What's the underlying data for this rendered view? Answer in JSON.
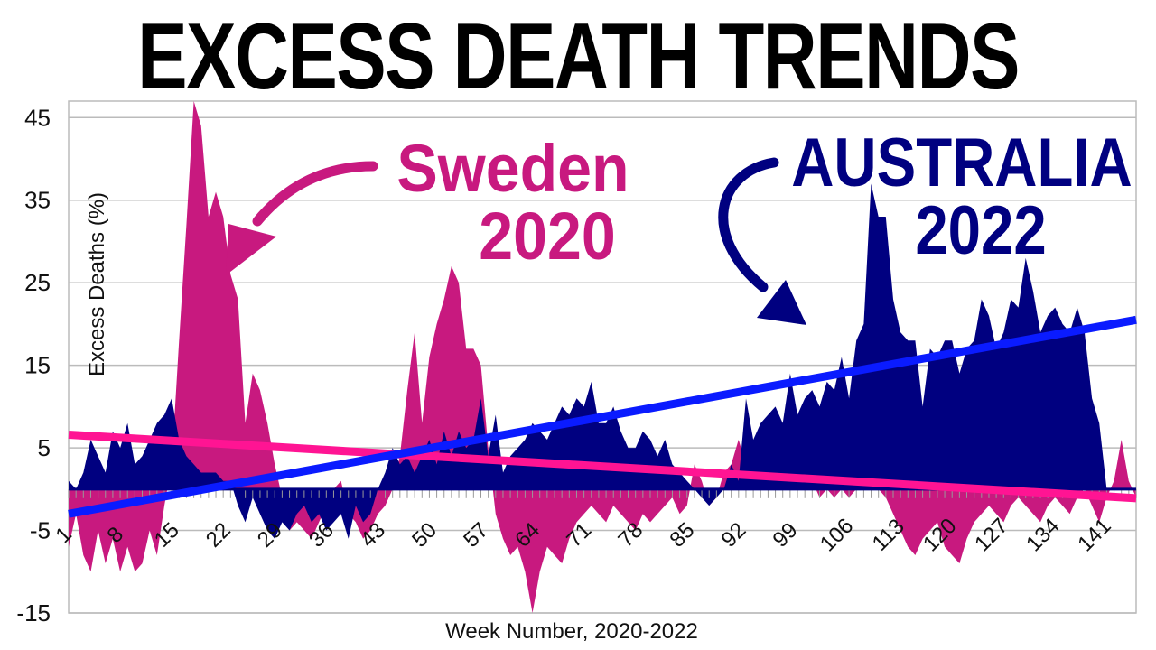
{
  "page": {
    "title": "EXCESS DEATH TRENDS"
  },
  "colors": {
    "sweden": "#c8197f",
    "australia": "#000080",
    "sweden_trend": "#ff1493",
    "australia_trend": "#0a1bff",
    "grid": "#bbbbbb"
  },
  "annotations": {
    "sweden_name": "Sweden",
    "sweden_year": "2020",
    "australia_name": "AUSTRALIA",
    "australia_year": "2022"
  },
  "chart_data": {
    "type": "area",
    "title": "EXCESS DEATH TRENDS",
    "xlabel": "Week Number, 2020-2022",
    "ylabel": "Excess Deaths (%)",
    "xlim": [
      1,
      146
    ],
    "ylim": [
      -15,
      47
    ],
    "yticks": [
      45,
      35,
      25,
      15,
      5,
      -5,
      -15
    ],
    "xticks": [
      1,
      8,
      15,
      22,
      29,
      36,
      43,
      50,
      57,
      64,
      71,
      78,
      85,
      92,
      99,
      106,
      113,
      120,
      127,
      134,
      141
    ],
    "grid": true,
    "series": [
      {
        "name": "Sweden",
        "color": "#c8197f",
        "points": [
          [
            1,
            -7
          ],
          [
            2,
            -3
          ],
          [
            3,
            -8
          ],
          [
            4,
            -10
          ],
          [
            5,
            -5
          ],
          [
            6,
            -9
          ],
          [
            7,
            -6
          ],
          [
            8,
            -10
          ],
          [
            9,
            -7
          ],
          [
            10,
            -10
          ],
          [
            11,
            -9
          ],
          [
            12,
            -5
          ],
          [
            13,
            -8
          ],
          [
            14,
            -2
          ],
          [
            15,
            3
          ],
          [
            16,
            18
          ],
          [
            17,
            32
          ],
          [
            18,
            47
          ],
          [
            19,
            44
          ],
          [
            20,
            33
          ],
          [
            21,
            36
          ],
          [
            22,
            33
          ],
          [
            23,
            26
          ],
          [
            24,
            23
          ],
          [
            25,
            8
          ],
          [
            26,
            14
          ],
          [
            27,
            12
          ],
          [
            28,
            8
          ],
          [
            29,
            3
          ],
          [
            30,
            -1
          ],
          [
            31,
            -5
          ],
          [
            32,
            -4
          ],
          [
            33,
            -5
          ],
          [
            34,
            -6
          ],
          [
            35,
            -4
          ],
          [
            36,
            -2
          ],
          [
            37,
            0
          ],
          [
            38,
            1
          ],
          [
            39,
            -3
          ],
          [
            40,
            -4
          ],
          [
            41,
            -6
          ],
          [
            42,
            -5
          ],
          [
            43,
            -3
          ],
          [
            44,
            -2
          ],
          [
            45,
            0
          ],
          [
            46,
            4
          ],
          [
            47,
            12
          ],
          [
            48,
            19
          ],
          [
            49,
            8
          ],
          [
            50,
            16
          ],
          [
            51,
            20
          ],
          [
            52,
            23
          ],
          [
            53,
            27
          ],
          [
            54,
            25
          ],
          [
            55,
            17
          ],
          [
            56,
            17
          ],
          [
            57,
            15
          ],
          [
            58,
            5
          ],
          [
            59,
            -3
          ],
          [
            60,
            -6
          ],
          [
            61,
            -8
          ],
          [
            62,
            -7
          ],
          [
            63,
            -10
          ],
          [
            64,
            -15
          ],
          [
            65,
            -10
          ],
          [
            66,
            -7
          ],
          [
            67,
            -8
          ],
          [
            68,
            -9
          ],
          [
            69,
            -6
          ],
          [
            70,
            -4
          ],
          [
            71,
            -3
          ],
          [
            72,
            -2
          ],
          [
            73,
            -3
          ],
          [
            74,
            -4
          ],
          [
            75,
            -2
          ],
          [
            76,
            -3
          ],
          [
            77,
            -4
          ],
          [
            78,
            -5
          ],
          [
            79,
            -3
          ],
          [
            80,
            -4
          ],
          [
            81,
            -3
          ],
          [
            82,
            -2
          ],
          [
            83,
            -1
          ],
          [
            84,
            -3
          ],
          [
            85,
            -2
          ],
          [
            86,
            3
          ],
          [
            87,
            1
          ],
          [
            88,
            -2
          ],
          [
            89,
            -1
          ],
          [
            90,
            2
          ],
          [
            91,
            3
          ],
          [
            92,
            6
          ],
          [
            93,
            3
          ],
          [
            94,
            2
          ],
          [
            95,
            2
          ],
          [
            96,
            2
          ],
          [
            97,
            1
          ],
          [
            98,
            0
          ],
          [
            99,
            1
          ],
          [
            100,
            1
          ],
          [
            101,
            0
          ],
          [
            102,
            1
          ],
          [
            103,
            -1
          ],
          [
            104,
            0
          ],
          [
            105,
            -1
          ],
          [
            106,
            0
          ],
          [
            107,
            -1
          ],
          [
            108,
            0
          ],
          [
            109,
            0
          ],
          [
            110,
            1
          ],
          [
            111,
            0
          ],
          [
            112,
            -1
          ],
          [
            113,
            -3
          ],
          [
            114,
            -5
          ],
          [
            115,
            -7
          ],
          [
            116,
            -8
          ],
          [
            117,
            -6
          ],
          [
            118,
            -5
          ],
          [
            119,
            -4
          ],
          [
            120,
            -7
          ],
          [
            121,
            -8
          ],
          [
            122,
            -9
          ],
          [
            123,
            -6
          ],
          [
            124,
            -4
          ],
          [
            125,
            -3
          ],
          [
            126,
            -2
          ],
          [
            127,
            -3
          ],
          [
            128,
            -4
          ],
          [
            129,
            -2
          ],
          [
            130,
            -1
          ],
          [
            131,
            -2
          ],
          [
            132,
            -3
          ],
          [
            133,
            -4
          ],
          [
            134,
            -2
          ],
          [
            135,
            -1
          ],
          [
            136,
            -2
          ],
          [
            137,
            -3
          ],
          [
            138,
            -1
          ],
          [
            139,
            0
          ],
          [
            140,
            -2
          ],
          [
            141,
            -4
          ],
          [
            142,
            -1
          ],
          [
            143,
            1
          ],
          [
            144,
            6
          ],
          [
            145,
            1
          ],
          [
            146,
            -1
          ]
        ]
      },
      {
        "name": "Australia",
        "color": "#000080",
        "points": [
          [
            1,
            1
          ],
          [
            2,
            0
          ],
          [
            3,
            2
          ],
          [
            4,
            6
          ],
          [
            5,
            4
          ],
          [
            6,
            2
          ],
          [
            7,
            7
          ],
          [
            8,
            5
          ],
          [
            9,
            8
          ],
          [
            10,
            3
          ],
          [
            11,
            4
          ],
          [
            12,
            6
          ],
          [
            13,
            8
          ],
          [
            14,
            9
          ],
          [
            15,
            11
          ],
          [
            16,
            6
          ],
          [
            17,
            4
          ],
          [
            18,
            3
          ],
          [
            19,
            2
          ],
          [
            20,
            2
          ],
          [
            21,
            2
          ],
          [
            22,
            1
          ],
          [
            23,
            1
          ],
          [
            24,
            -2
          ],
          [
            25,
            -4
          ],
          [
            26,
            -1
          ],
          [
            27,
            -3
          ],
          [
            28,
            -5
          ],
          [
            29,
            -6
          ],
          [
            30,
            -4
          ],
          [
            31,
            -5
          ],
          [
            32,
            -3
          ],
          [
            33,
            -2
          ],
          [
            34,
            -4
          ],
          [
            35,
            -3
          ],
          [
            36,
            -5
          ],
          [
            37,
            -4
          ],
          [
            38,
            -3
          ],
          [
            39,
            -6
          ],
          [
            40,
            -2
          ],
          [
            41,
            -4
          ],
          [
            42,
            -3
          ],
          [
            43,
            0
          ],
          [
            44,
            2
          ],
          [
            45,
            5
          ],
          [
            46,
            3
          ],
          [
            47,
            4
          ],
          [
            48,
            2
          ],
          [
            49,
            4
          ],
          [
            50,
            6
          ],
          [
            51,
            3
          ],
          [
            52,
            7
          ],
          [
            53,
            4
          ],
          [
            54,
            7
          ],
          [
            55,
            5
          ],
          [
            56,
            6
          ],
          [
            57,
            11
          ],
          [
            58,
            4
          ],
          [
            59,
            9
          ],
          [
            60,
            2
          ],
          [
            61,
            4
          ],
          [
            62,
            5
          ],
          [
            63,
            6
          ],
          [
            64,
            8
          ],
          [
            65,
            7
          ],
          [
            66,
            6
          ],
          [
            67,
            8
          ],
          [
            68,
            10
          ],
          [
            69,
            9
          ],
          [
            70,
            11
          ],
          [
            71,
            10
          ],
          [
            72,
            13
          ],
          [
            73,
            8
          ],
          [
            74,
            8
          ],
          [
            75,
            10
          ],
          [
            76,
            7
          ],
          [
            77,
            5
          ],
          [
            78,
            5
          ],
          [
            79,
            7
          ],
          [
            80,
            6
          ],
          [
            81,
            4
          ],
          [
            82,
            6
          ],
          [
            83,
            3
          ],
          [
            84,
            2
          ],
          [
            85,
            1
          ],
          [
            86,
            0
          ],
          [
            87,
            -1
          ],
          [
            88,
            -2
          ],
          [
            89,
            -1
          ],
          [
            90,
            0
          ],
          [
            91,
            3
          ],
          [
            92,
            1
          ],
          [
            93,
            11
          ],
          [
            94,
            6
          ],
          [
            95,
            8
          ],
          [
            96,
            9
          ],
          [
            97,
            10
          ],
          [
            98,
            8
          ],
          [
            99,
            14
          ],
          [
            100,
            9
          ],
          [
            101,
            11
          ],
          [
            102,
            12
          ],
          [
            103,
            10
          ],
          [
            104,
            13
          ],
          [
            105,
            12
          ],
          [
            106,
            16
          ],
          [
            107,
            11
          ],
          [
            108,
            18
          ],
          [
            109,
            20
          ],
          [
            110,
            37
          ],
          [
            111,
            33
          ],
          [
            112,
            33
          ],
          [
            113,
            23
          ],
          [
            114,
            19
          ],
          [
            115,
            18
          ],
          [
            116,
            18
          ],
          [
            117,
            10
          ],
          [
            118,
            17
          ],
          [
            119,
            16
          ],
          [
            120,
            18
          ],
          [
            121,
            18
          ],
          [
            122,
            14
          ],
          [
            123,
            17
          ],
          [
            124,
            18
          ],
          [
            125,
            23
          ],
          [
            126,
            21
          ],
          [
            127,
            17
          ],
          [
            128,
            19
          ],
          [
            129,
            23
          ],
          [
            130,
            22
          ],
          [
            131,
            28
          ],
          [
            132,
            24
          ],
          [
            133,
            19
          ],
          [
            134,
            21
          ],
          [
            135,
            22
          ],
          [
            136,
            20
          ],
          [
            137,
            19
          ],
          [
            138,
            22
          ],
          [
            139,
            19
          ],
          [
            140,
            11
          ],
          [
            141,
            8
          ],
          [
            142,
            0
          ]
        ]
      }
    ],
    "trend_lines": [
      {
        "name": "Sweden trend",
        "color": "#ff1493",
        "x": [
          1,
          146
        ],
        "y": [
          6.6,
          -1.1
        ]
      },
      {
        "name": "Australia trend",
        "color": "#0a1bff",
        "x": [
          1,
          146
        ],
        "y": [
          -3.0,
          20.5
        ]
      }
    ]
  }
}
